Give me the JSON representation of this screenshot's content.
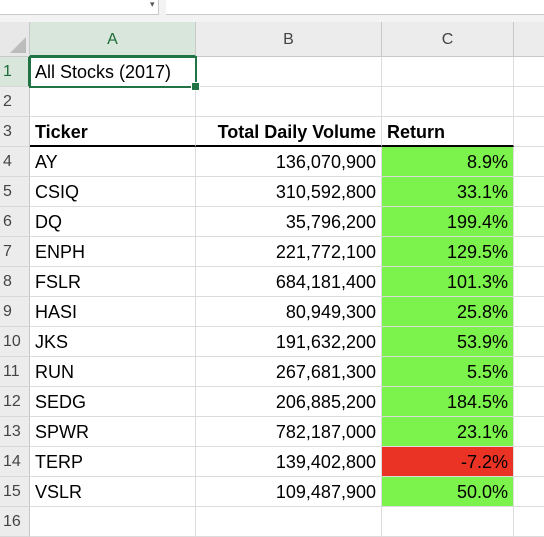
{
  "sheet": {
    "columns": [
      "A",
      "B",
      "C"
    ],
    "selected_column": "A",
    "selected_row": "1",
    "row_numbers": [
      "1",
      "2",
      "3",
      "4",
      "5",
      "6",
      "7",
      "8",
      "9",
      "10",
      "11",
      "12",
      "13",
      "14",
      "15",
      "16"
    ],
    "title": "All Stocks (2017)",
    "table_headers": {
      "ticker": "Ticker",
      "volume": "Total Daily Volume",
      "return": "Return"
    },
    "rows": [
      {
        "ticker": "AY",
        "volume": "136,070,900",
        "return": "8.9%",
        "status": "positive"
      },
      {
        "ticker": "CSIQ",
        "volume": "310,592,800",
        "return": "33.1%",
        "status": "positive"
      },
      {
        "ticker": "DQ",
        "volume": "35,796,200",
        "return": "199.4%",
        "status": "positive"
      },
      {
        "ticker": "ENPH",
        "volume": "221,772,100",
        "return": "129.5%",
        "status": "positive"
      },
      {
        "ticker": "FSLR",
        "volume": "684,181,400",
        "return": "101.3%",
        "status": "positive"
      },
      {
        "ticker": "HASI",
        "volume": "80,949,300",
        "return": "25.8%",
        "status": "positive"
      },
      {
        "ticker": "JKS",
        "volume": "191,632,200",
        "return": "53.9%",
        "status": "positive"
      },
      {
        "ticker": "RUN",
        "volume": "267,681,300",
        "return": "5.5%",
        "status": "positive"
      },
      {
        "ticker": "SEDG",
        "volume": "206,885,200",
        "return": "184.5%",
        "status": "positive"
      },
      {
        "ticker": "SPWR",
        "volume": "782,187,000",
        "return": "23.1%",
        "status": "positive"
      },
      {
        "ticker": "TERP",
        "volume": "139,402,800",
        "return": "-7.2%",
        "status": "negative"
      },
      {
        "ticker": "VSLR",
        "volume": "109,487,900",
        "return": "50.0%",
        "status": "positive"
      }
    ]
  },
  "colors": {
    "positive_fill": "#7cf24c",
    "negative_fill": "#ea3324",
    "selection": "#217346"
  }
}
